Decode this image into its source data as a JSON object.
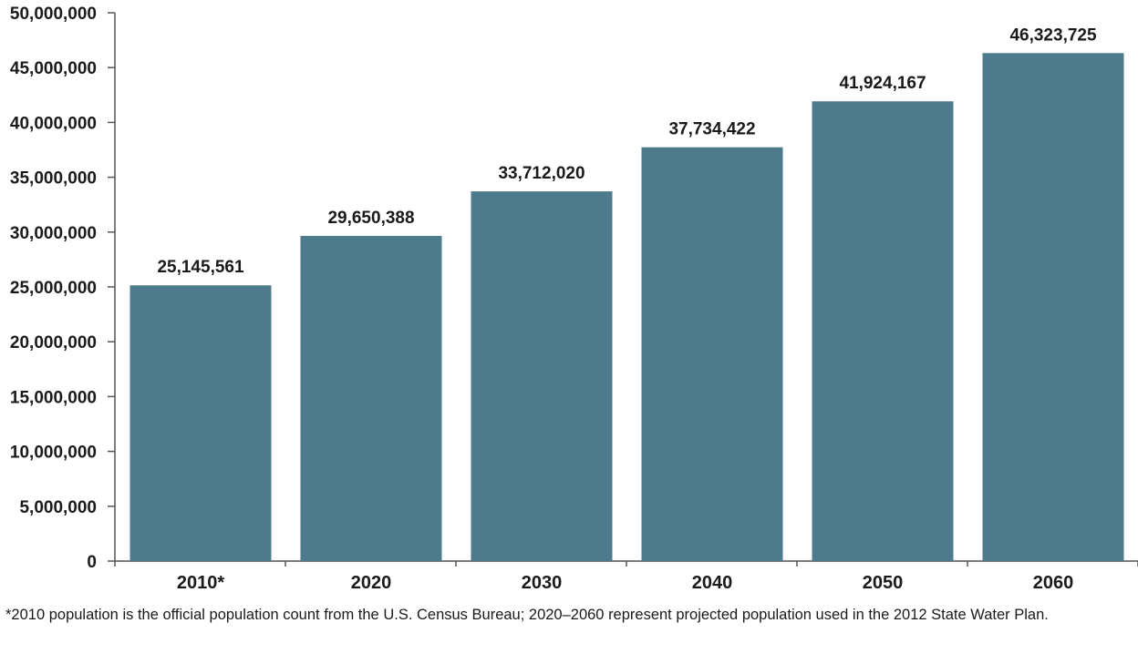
{
  "chart_data": {
    "type": "bar",
    "categories": [
      "2010*",
      "2020",
      "2030",
      "2040",
      "2050",
      "2060"
    ],
    "values": [
      25145561,
      29650388,
      33712020,
      37734422,
      41924167,
      46323725
    ],
    "data_labels": [
      "25,145,561",
      "29,650,388",
      "33,712,020",
      "37,734,422",
      "41,924,167",
      "46,323,725"
    ],
    "title": "",
    "xlabel": "",
    "ylabel": "",
    "ylim": [
      0,
      50000000
    ],
    "yticks": [
      0,
      5000000,
      10000000,
      15000000,
      20000000,
      25000000,
      30000000,
      35000000,
      40000000,
      45000000,
      50000000
    ],
    "ytick_labels": [
      "0",
      "5,000,000",
      "10,000,000",
      "15,000,000",
      "20,000,000",
      "25,000,000",
      "30,000,000",
      "35,000,000",
      "40,000,000",
      "45,000,000",
      "50,000,000"
    ],
    "grid": false,
    "legend": "none",
    "bar_color": "#4e7b8b",
    "footnote": "*2010 population is the official population count from the U.S. Census Bureau; 2020–2060 represent projected population used in the 2012 State Water Plan."
  }
}
